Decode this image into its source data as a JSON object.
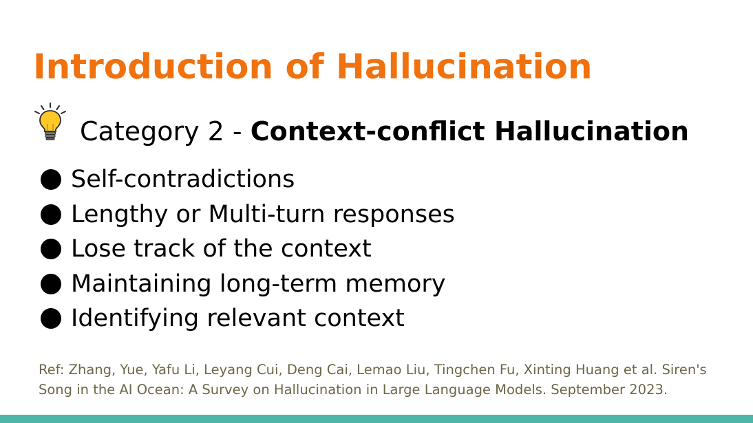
{
  "slide": {
    "title": "Introduction of Hallucination",
    "subtitle_prefix": "Category 2 - ",
    "subtitle_emphasis": "Context-conflict Hallucination",
    "subtitle_icon": "lightbulb-icon",
    "bullets": [
      "Self-contradictions",
      "Lengthy or Multi-turn responses",
      "Lose track of the context",
      "Maintaining long-term memory",
      "Identifying relevant context"
    ],
    "reference": "Ref: Zhang, Yue, Yafu Li, Leyang Cui, Deng Cai, Lemao Liu, Tingchen Fu, Xinting Huang et al. Siren's Song in the AI Ocean: A Survey on Hallucination in Large Language Models. September 2023."
  },
  "colors": {
    "title": "#f0720f",
    "body": "#000000",
    "reference": "#6e6648",
    "bottom_bar": "#4eb5a9",
    "bulb_fill": "#ffc927"
  }
}
